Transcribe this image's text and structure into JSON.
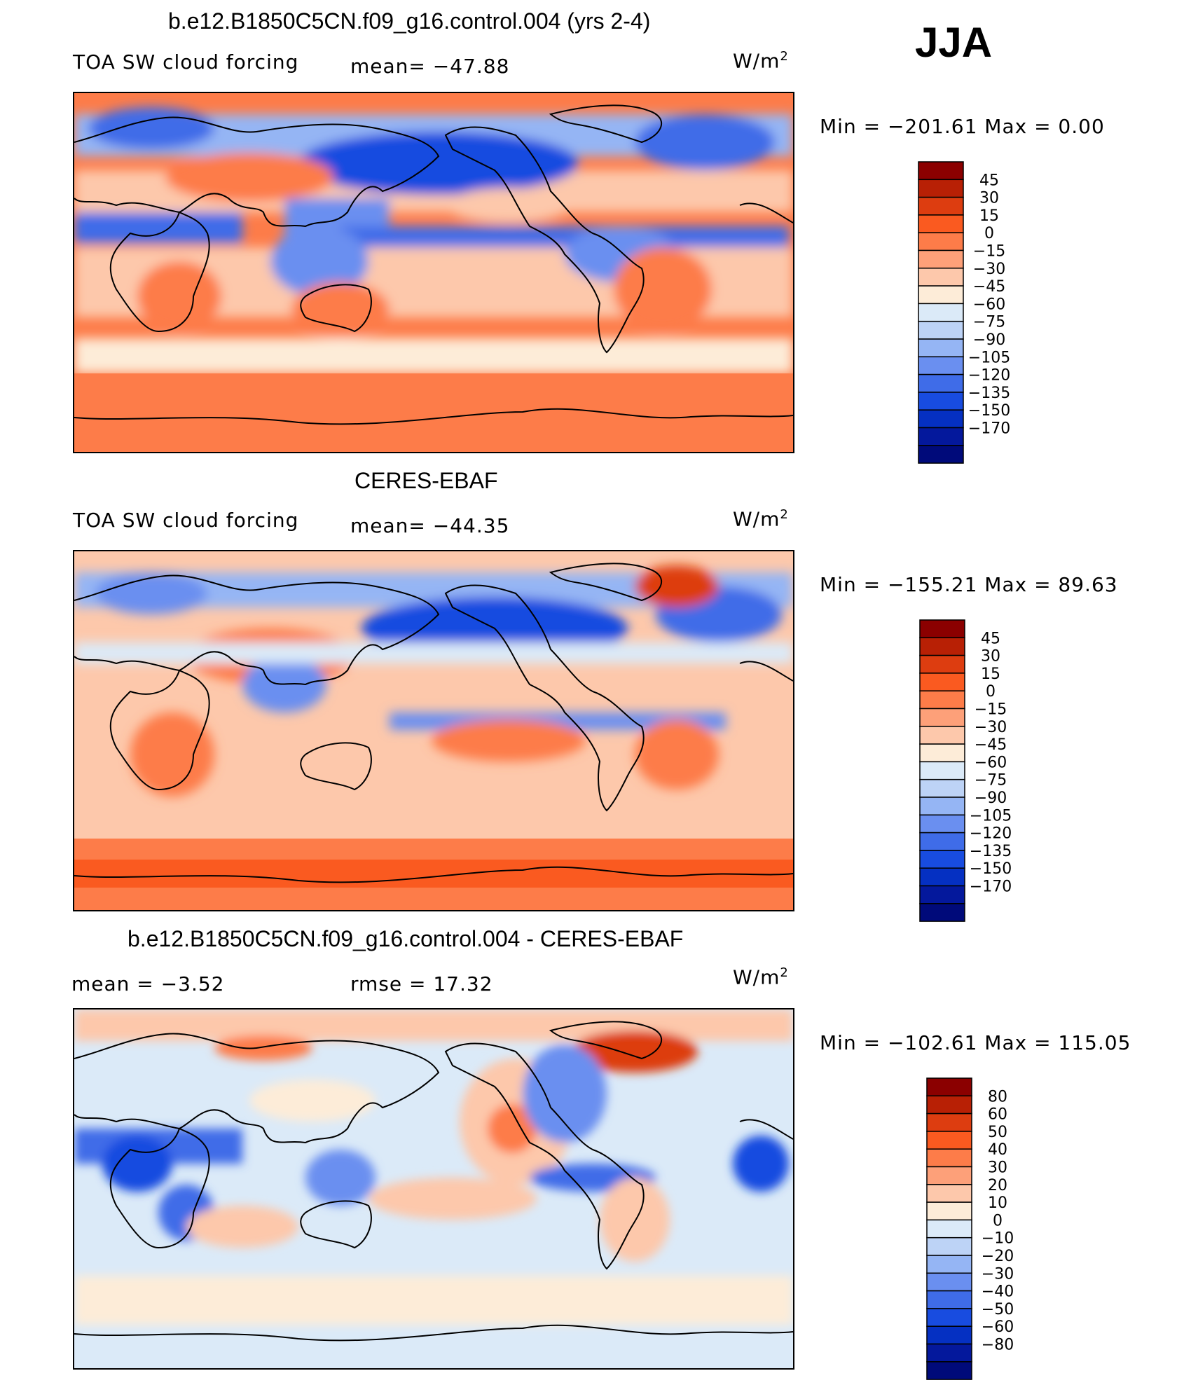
{
  "season": "JJA",
  "panels": [
    {
      "title": "b.e12.B1850C5CN.f09_g16.control.004 (yrs 2-4)",
      "left_label": "TOA SW cloud forcing",
      "center_label": "mean= −47.88",
      "units": "W/m",
      "units_exp": "2",
      "minmax": "Min  =  −201.61  Max  =     0.00",
      "colors": [
        "#8b0000",
        "#b82005",
        "#dd3d10",
        "#fa5a20",
        "#fd7c49",
        "#fda079",
        "#fdc8ab",
        "#fdecd8",
        "#dbeaf8",
        "#bdd3f6",
        "#95b5f4",
        "#6a8ff0",
        "#3f6ce8",
        "#184ce0",
        "#0530c2",
        "#04189c",
        "#000a7a"
      ],
      "labels": [
        "45",
        "30",
        "15",
        "0",
        "−15",
        "−30",
        "−45",
        "−60",
        "−75",
        "−90",
        "−105",
        "−120",
        "−135",
        "−150",
        "−170"
      ]
    },
    {
      "title": "CERES-EBAF",
      "left_label": "TOA SW cloud forcing",
      "center_label": "mean= −44.35",
      "units": "W/m",
      "units_exp": "2",
      "minmax": "Min  =  −155.21  Max  =    89.63",
      "colors": [
        "#8b0000",
        "#b82005",
        "#dd3d10",
        "#fa5a20",
        "#fd7c49",
        "#fda079",
        "#fdc8ab",
        "#fdecd8",
        "#dbeaf8",
        "#bdd3f6",
        "#95b5f4",
        "#6a8ff0",
        "#3f6ce8",
        "#184ce0",
        "#0530c2",
        "#04189c",
        "#000a7a"
      ],
      "labels": [
        "45",
        "30",
        "15",
        "0",
        "−15",
        "−30",
        "−45",
        "−60",
        "−75",
        "−90",
        "−105",
        "−120",
        "−135",
        "−150",
        "−170"
      ]
    },
    {
      "title": "b.e12.B1850C5CN.f09_g16.control.004 - CERES-EBAF",
      "left_label": "mean =    −3.52",
      "center_label": "rmse =    17.32",
      "units": "W/m",
      "units_exp": "2",
      "minmax": "Min  =  −102.61  Max  =  115.05",
      "colors": [
        "#8b0000",
        "#b82005",
        "#dd3d10",
        "#fa5a20",
        "#fd7c49",
        "#fda079",
        "#fdc8ab",
        "#fdecd8",
        "#dbeaf8",
        "#bdd3f6",
        "#95b5f4",
        "#6a8ff0",
        "#3f6ce8",
        "#184ce0",
        "#0530c2",
        "#04189c",
        "#000a7a"
      ],
      "labels": [
        "80",
        "60",
        "50",
        "40",
        "30",
        "20",
        "10",
        "0",
        "−10",
        "−20",
        "−30",
        "−40",
        "−50",
        "−60",
        "−80"
      ]
    }
  ]
}
